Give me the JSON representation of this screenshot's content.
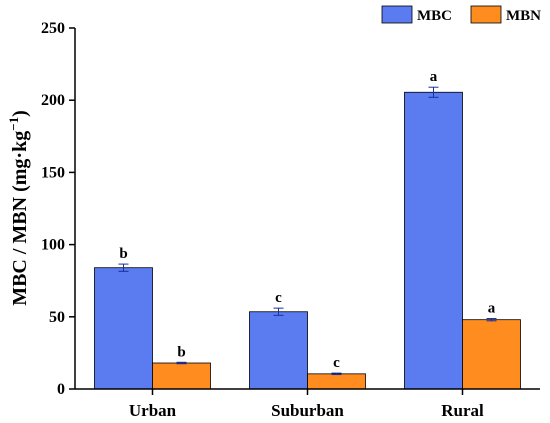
{
  "chart_data": {
    "type": "bar",
    "categories": [
      "Urban",
      "Suburban",
      "Rural"
    ],
    "series": [
      {
        "name": "MBC",
        "color": "#5B7BF0",
        "values": [
          84,
          53.5,
          205.5
        ],
        "errors": [
          2.5,
          2.5,
          3.5
        ],
        "labels": [
          "b",
          "c",
          "a"
        ]
      },
      {
        "name": "MBN",
        "color": "#FF8C1F",
        "values": [
          18,
          10.5,
          48
        ],
        "errors": [
          0.5,
          0.5,
          0.8
        ],
        "labels": [
          "b",
          "c",
          "a"
        ]
      }
    ],
    "ylabel_main": "MBC / MBN (mg·kg",
    "ylabel_sup": "−1",
    "ylabel_close": ")",
    "ylim": [
      0,
      250
    ],
    "yticks": [
      0,
      50,
      100,
      150,
      200,
      250
    ],
    "legend_position": "top-right",
    "grid": false
  }
}
